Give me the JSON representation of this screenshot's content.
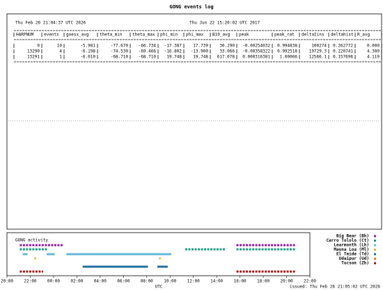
{
  "header": {
    "title": "GONG events log",
    "now": "Thu Feb 26 21:04:37 UTC 2026",
    "data_date": "Thu Jun 22 15:20:02 UTC 2017"
  },
  "table": {
    "columns": [
      "HARPNUM",
      "events",
      "goesx_avg",
      "theta_min",
      "theta_max",
      "phi_min",
      "phi_max",
      "B10_avg",
      "peak",
      "peak_rat",
      "deltaIins",
      "deltahist",
      "R_avg"
    ],
    "rows": [
      [
        "0",
        "10",
        "-5.981",
        "-77.670",
        "-66.734",
        "-17.387",
        "17.739",
        "30.290",
        "-0.00254032",
        "0.994838",
        "100274",
        "0.262772",
        "0.000"
      ],
      [
        "13290",
        "4",
        "-6.198",
        "-74.530",
        "-69.466",
        "-16.802",
        "-13.900",
        "33.066",
        "-0.00358322",
        "0.992518",
        "19729.3",
        "0.220741",
        "4.300"
      ],
      [
        "13291",
        "1",
        "-6.010",
        "-68.710",
        "-68.710",
        "19.748",
        "19.748",
        "617.078",
        "0.000316381",
        "1.00066",
        "12566.1",
        "0.157696",
        "4.119"
      ]
    ]
  },
  "activity": {
    "title": "GONG activity",
    "xlabel": "UTC",
    "issued": "issued: Thu Feb 26 21:05:02 UTC 2026",
    "xlim": [
      0,
      26
    ],
    "xticks": [
      {
        "value": 0,
        "label": "20:00"
      },
      {
        "value": 2,
        "label": "22:00"
      },
      {
        "value": 4,
        "label": "00:00"
      },
      {
        "value": 6,
        "label": "02:00"
      },
      {
        "value": 8,
        "label": "04:00"
      },
      {
        "value": 10,
        "label": "06:00"
      },
      {
        "value": 12,
        "label": "08:00"
      },
      {
        "value": 14,
        "label": "10:00"
      },
      {
        "value": 16,
        "label": "12:00"
      },
      {
        "value": 18,
        "label": "14:00"
      },
      {
        "value": 20,
        "label": "16:00"
      },
      {
        "value": 22,
        "label": "18:00"
      },
      {
        "value": 24,
        "label": "20:00"
      },
      {
        "value": 26,
        "label": "22:00"
      }
    ],
    "stations": [
      {
        "name": "Big Bear (Bh)",
        "color": "#8b1a9e",
        "dashed": true,
        "segments": [
          [
            1.1,
            4.8
          ],
          [
            19.7,
            24.8
          ]
        ]
      },
      {
        "name": "Cerro Tololo (Ct)",
        "color": "#1a9a80",
        "dashed": true,
        "segments": [
          [
            1.1,
            3.5
          ],
          [
            15.3,
            18.8
          ],
          [
            19.7,
            24.8
          ]
        ]
      },
      {
        "name": "Learmonth (Lh)",
        "color": "#66b8d8",
        "dashed": false,
        "segments": [
          [
            1.35,
            1.76
          ],
          [
            3.4,
            4.1
          ],
          [
            5.1,
            14.1
          ]
        ]
      },
      {
        "name": "Mauna Loa (Ml)",
        "color": "#d4c020",
        "dashed": false,
        "segments": [
          [
            2.35,
            2.5
          ],
          [
            13.06,
            13.2
          ]
        ]
      },
      {
        "name": "El Teide (Td)",
        "color": "#1f6fa0",
        "dashed": false,
        "segments": [
          [
            6.5,
            12.1
          ],
          [
            12.9,
            13.8
          ]
        ]
      },
      {
        "name": "Udaipur (Ud)",
        "color": "#e07a20",
        "dashed": false,
        "segments": []
      },
      {
        "name": "Tucson (Zh)",
        "color": "#a01818",
        "dashed": true,
        "segments": [
          [
            1.1,
            3.1
          ],
          [
            19.7,
            24.8
          ]
        ]
      }
    ]
  }
}
